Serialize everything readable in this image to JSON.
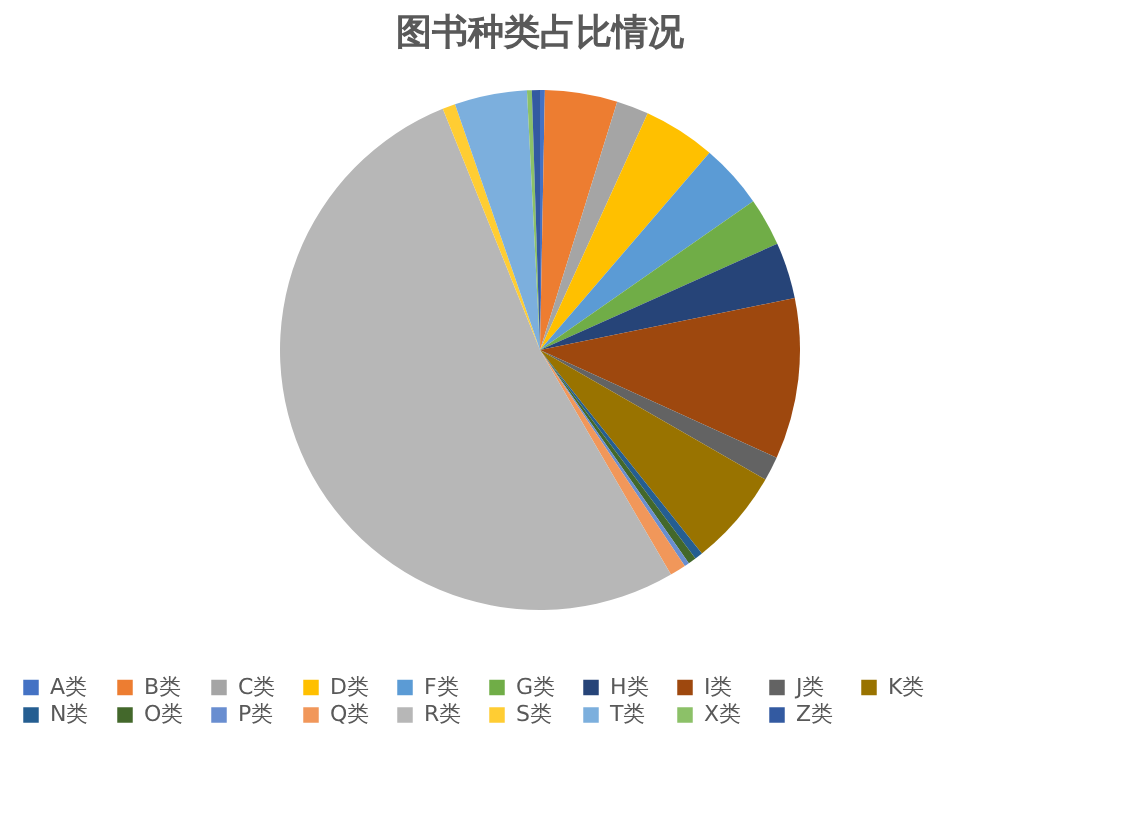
{
  "chart_data": {
    "type": "pie",
    "title": "图书种类占比情况",
    "categories": [
      "A类",
      "B类",
      "C类",
      "D类",
      "F类",
      "G类",
      "H类",
      "I类",
      "J类",
      "K类",
      "N类",
      "O类",
      "P类",
      "Q类",
      "R类",
      "S类",
      "T类",
      "X类",
      "Z类"
    ],
    "values": [
      0.3,
      4.5,
      2,
      4.5,
      4,
      3,
      3.5,
      10,
      1.5,
      6,
      0.5,
      0.5,
      0.3,
      1,
      52.3,
      0.8,
      4.5,
      0.3,
      0.5
    ],
    "colors": [
      "#4472c4",
      "#ed7d31",
      "#a5a5a5",
      "#ffc000",
      "#5b9bd5",
      "#70ad47",
      "#264478",
      "#9e480e",
      "#636363",
      "#997300",
      "#255e91",
      "#43682b",
      "#698ed0",
      "#f1975a",
      "#b7b7b7",
      "#ffcd33",
      "#7cafdd",
      "#8cc168",
      "#335aa1"
    ],
    "legend": "bottom"
  }
}
